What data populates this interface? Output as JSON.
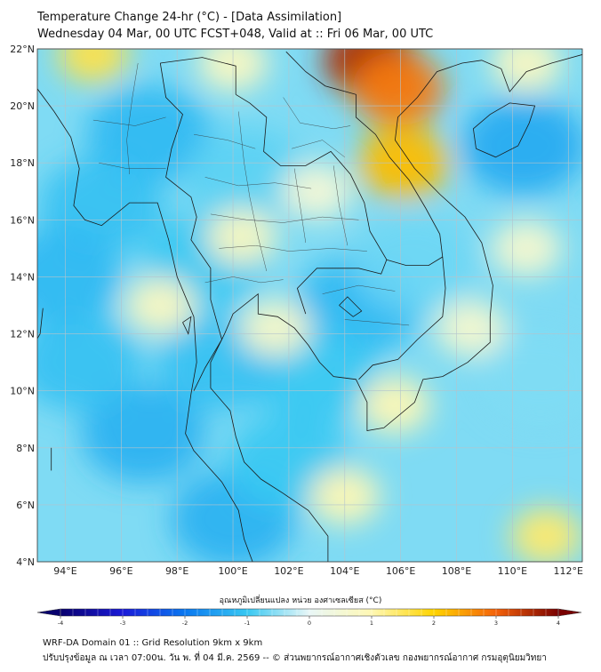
{
  "header": {
    "title_line1": "Temperature Change 24-hr (°C) - [Data Assimilation]",
    "title_line2": "Wednesday 04 Mar, 00 UTC FCST+048, Valid at :: Fri 06 Mar, 00 UTC"
  },
  "map": {
    "lat_labels": [
      "22°N",
      "20°N",
      "18°N",
      "16°N",
      "14°N",
      "12°N",
      "10°N",
      "8°N",
      "6°N",
      "4°N"
    ],
    "lon_labels": [
      "94°E",
      "96°E",
      "98°E",
      "100°E",
      "102°E",
      "104°E",
      "106°E",
      "108°E",
      "110°E",
      "112°E"
    ],
    "lat_range": [
      4,
      22
    ],
    "lon_range": [
      93,
      112.5
    ],
    "hot_spots": [
      {
        "lat": 21.6,
        "lon": 104.9,
        "value": 3.6
      },
      {
        "lat": 20.6,
        "lon": 105.9,
        "value": 2.8
      },
      {
        "lat": 18.0,
        "lon": 106.1,
        "value": 2.2
      },
      {
        "lat": 21.8,
        "lon": 95.0,
        "value": 1.6
      },
      {
        "lat": 9.5,
        "lon": 105.8,
        "value": 1.0
      },
      {
        "lat": 6.3,
        "lon": 104.0,
        "value": 1.0
      },
      {
        "lat": 4.9,
        "lon": 111.2,
        "value": 1.4
      },
      {
        "lat": 15.4,
        "lon": 100.3,
        "value": 0.8
      },
      {
        "lat": 13.0,
        "lon": 97.4,
        "value": 0.8
      },
      {
        "lat": 12.2,
        "lon": 108.5,
        "value": 0.6
      },
      {
        "lat": 15.0,
        "lon": 110.5,
        "value": 0.6
      },
      {
        "lat": 21.5,
        "lon": 100.0,
        "value": 0.8
      },
      {
        "lat": 17.0,
        "lon": 103.0,
        "value": 0.5
      },
      {
        "lat": 21.5,
        "lon": 110.5,
        "value": 0.8
      },
      {
        "lat": 12.2,
        "lon": 101.5,
        "value": 0.7
      }
    ],
    "cold_spots": [
      {
        "lat": 18.6,
        "lon": 110.4,
        "value": -1.4
      },
      {
        "lat": 19.0,
        "lon": 97.0,
        "value": -1.2
      },
      {
        "lat": 16.5,
        "lon": 95.3,
        "value": -1.1
      },
      {
        "lat": 8.5,
        "lon": 96.8,
        "value": -1.3
      },
      {
        "lat": 13.0,
        "lon": 104.5,
        "value": -1.2
      },
      {
        "lat": 10.5,
        "lon": 103.0,
        "value": -1.0
      },
      {
        "lat": 14.0,
        "lon": 93.8,
        "value": -1.2
      },
      {
        "lat": 11.0,
        "lon": 94.5,
        "value": -1.1
      },
      {
        "lat": 5.5,
        "lon": 100.0,
        "value": -1.3
      },
      {
        "lat": 7.5,
        "lon": 102.0,
        "value": -1.0
      },
      {
        "lat": 14.5,
        "lon": 99.0,
        "value": -1.0
      },
      {
        "lat": 11.0,
        "lon": 99.5,
        "value": -1.1
      },
      {
        "lat": 17.5,
        "lon": 100.5,
        "value": -0.8
      },
      {
        "lat": 14.5,
        "lon": 106.5,
        "value": -0.7
      },
      {
        "lat": 10.5,
        "lon": 111.0,
        "value": -0.6
      }
    ],
    "colors": {
      "background": "#ffffff",
      "grid": "#b4c4cc",
      "border": "#1a1a1a"
    }
  },
  "colorbar": {
    "label": "อุณหภูมิเปลี่ยนแปลง หน่วย องศาเซลเซียส (°C)",
    "min": -4,
    "max": 4,
    "tick_labels": [
      "-4",
      "-3",
      "-2",
      "-1",
      "0",
      "1",
      "2",
      "3",
      "4"
    ],
    "colors": [
      "#08006e",
      "#1a1ad8",
      "#0a78f0",
      "#38c8f2",
      "#e9f7f7",
      "#fff8b4",
      "#ffd400",
      "#f4620a",
      "#790000"
    ]
  },
  "footer": {
    "line1": "WRF-DA Domain 01 :: Grid Resolution 9km x 9km",
    "line2": "ปรับปรุงข้อมูล ณ เวลา 07:00น. วัน พ. ที่ 04 มี.ค. 2569 -- © ส่วนพยากรณ์อากาศเชิงตัวเลข กองพยากรณ์อากาศ กรมอุตุนิยมวิทยา"
  }
}
